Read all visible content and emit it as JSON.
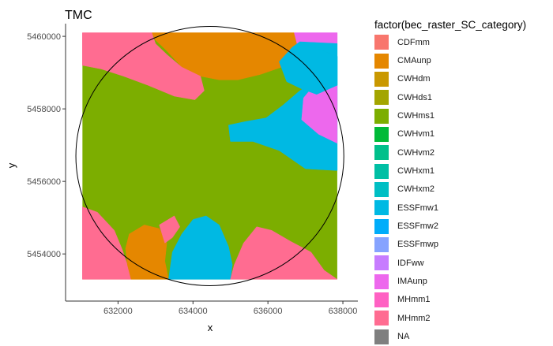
{
  "chart_data": {
    "type": "raster_map",
    "title": "TMC",
    "xlabel": "x",
    "ylabel": "y",
    "x_ticks": [
      632000,
      634000,
      636000,
      638000
    ],
    "y_ticks": [
      5454000,
      5456000,
      5458000,
      5460000
    ],
    "x_tick_labels": [
      "632000",
      "634000",
      "636000",
      "638000"
    ],
    "y_tick_labels": [
      "5454000",
      "5456000",
      "5458000",
      "5460000"
    ],
    "xlim": [
      630600,
      638400
    ],
    "ylim": [
      5452700,
      5460350
    ],
    "raster_extent": {
      "xmin": 631050,
      "xmax": 637850,
      "ymin": 5453300,
      "ymax": 5460100
    },
    "legend_title": "factor(bec_raster_SC_category)",
    "legend_position": "right",
    "categories": [
      {
        "name": "CDFmm",
        "color": "#F8766D"
      },
      {
        "name": "CMAunp",
        "color": "#E58700"
      },
      {
        "name": "CWHdm",
        "color": "#C99800"
      },
      {
        "name": "CWHds1",
        "color": "#A3A500"
      },
      {
        "name": "CWHms1",
        "color": "#7CAE00"
      },
      {
        "name": "CWHvm1",
        "color": "#00BA38"
      },
      {
        "name": "CWHvm2",
        "color": "#00C08B"
      },
      {
        "name": "CWHxm1",
        "color": "#00BFA4"
      },
      {
        "name": "CWHxm2",
        "color": "#00BFC4"
      },
      {
        "name": "ESSFmw1",
        "color": "#00B9E3"
      },
      {
        "name": "ESSFmw2",
        "color": "#00ADFA"
      },
      {
        "name": "ESSFmwp",
        "color": "#86A3FF"
      },
      {
        "name": "IDFww",
        "color": "#C77CFF"
      },
      {
        "name": "IMAunp",
        "color": "#ED68ED"
      },
      {
        "name": "MHmm1",
        "color": "#FF61C3"
      },
      {
        "name": "MHmm2",
        "color": "#FF6C91"
      },
      {
        "name": "NA",
        "color": "#7F7F7F"
      }
    ],
    "background_category": "CWHms1",
    "regions": [
      {
        "category": "CMAunp",
        "polygon": [
          [
            632900,
            5460100
          ],
          [
            636700,
            5460100
          ],
          [
            636800,
            5459700
          ],
          [
            636500,
            5459200
          ],
          [
            635800,
            5458950
          ],
          [
            635200,
            5458800
          ],
          [
            634700,
            5458800
          ],
          [
            634200,
            5458900
          ],
          [
            633700,
            5459150
          ],
          [
            633300,
            5459600
          ],
          [
            633000,
            5459900
          ]
        ]
      },
      {
        "category": "MHmm2",
        "polygon": [
          [
            631050,
            5460100
          ],
          [
            632900,
            5460100
          ],
          [
            633000,
            5459800
          ],
          [
            633300,
            5459500
          ],
          [
            633700,
            5459150
          ],
          [
            634200,
            5458900
          ],
          [
            634300,
            5458500
          ],
          [
            634050,
            5458250
          ],
          [
            633500,
            5458350
          ],
          [
            632800,
            5458650
          ],
          [
            632150,
            5458900
          ],
          [
            631550,
            5459100
          ],
          [
            631050,
            5459200
          ]
        ]
      },
      {
        "category": "IMAunp",
        "polygon": [
          [
            636700,
            5460100
          ],
          [
            637850,
            5460100
          ],
          [
            637850,
            5459800
          ],
          [
            637350,
            5459650
          ],
          [
            636800,
            5459700
          ]
        ]
      },
      {
        "category": "ESSFmw1",
        "polygon": [
          [
            636850,
            5459850
          ],
          [
            637350,
            5459650
          ],
          [
            637850,
            5459450
          ],
          [
            637850,
            5458650
          ],
          [
            637350,
            5458800
          ],
          [
            636850,
            5458500
          ],
          [
            636400,
            5458100
          ],
          [
            635950,
            5457750
          ],
          [
            635400,
            5457650
          ],
          [
            634950,
            5457550
          ],
          [
            635000,
            5457100
          ],
          [
            635600,
            5457100
          ],
          [
            636300,
            5456850
          ],
          [
            637000,
            5456350
          ],
          [
            637850,
            5456300
          ],
          [
            637850,
            5459800
          ]
        ]
      },
      {
        "category": "IMAunp",
        "polygon": [
          [
            637850,
            5458650
          ],
          [
            637350,
            5458800
          ],
          [
            636950,
            5458300
          ],
          [
            636900,
            5457700
          ],
          [
            637350,
            5457300
          ],
          [
            637850,
            5457050
          ]
        ]
      },
      {
        "category": "ESSFmw1",
        "polygon": [
          [
            636300,
            5459300
          ],
          [
            636650,
            5459700
          ],
          [
            636850,
            5459850
          ],
          [
            637850,
            5459450
          ],
          [
            637850,
            5458650
          ],
          [
            637300,
            5458400
          ],
          [
            636900,
            5458550
          ],
          [
            636500,
            5458750
          ]
        ]
      },
      {
        "category": "MHmm2",
        "polygon": [
          [
            631050,
            5455300
          ],
          [
            631450,
            5455150
          ],
          [
            631900,
            5454650
          ],
          [
            632100,
            5454150
          ],
          [
            632250,
            5453700
          ],
          [
            632350,
            5453300
          ],
          [
            631050,
            5453300
          ]
        ]
      },
      {
        "category": "CMAunp",
        "polygon": [
          [
            632350,
            5453300
          ],
          [
            632250,
            5453700
          ],
          [
            632200,
            5454150
          ],
          [
            632300,
            5454550
          ],
          [
            632700,
            5454800
          ],
          [
            633100,
            5454700
          ],
          [
            633300,
            5454300
          ],
          [
            633250,
            5453800
          ],
          [
            633350,
            5453300
          ]
        ]
      },
      {
        "category": "MHmm2",
        "polygon": [
          [
            633100,
            5454800
          ],
          [
            633500,
            5455050
          ],
          [
            633650,
            5454750
          ],
          [
            633450,
            5454450
          ],
          [
            633250,
            5454300
          ]
        ]
      },
      {
        "category": "ESSFmw1",
        "polygon": [
          [
            633350,
            5453300
          ],
          [
            633450,
            5454050
          ],
          [
            633700,
            5454550
          ],
          [
            634000,
            5454950
          ],
          [
            634350,
            5455050
          ],
          [
            634700,
            5454800
          ],
          [
            634950,
            5454200
          ],
          [
            635050,
            5453700
          ],
          [
            635000,
            5453300
          ]
        ]
      },
      {
        "category": "MHmm2",
        "polygon": [
          [
            635000,
            5453300
          ],
          [
            635100,
            5453700
          ],
          [
            635350,
            5454300
          ],
          [
            635700,
            5454750
          ],
          [
            636100,
            5454650
          ],
          [
            636600,
            5454350
          ],
          [
            637150,
            5454050
          ],
          [
            637500,
            5453550
          ],
          [
            637850,
            5453300
          ]
        ]
      }
    ],
    "circle": {
      "cx": 634450,
      "cy": 5456700,
      "r": 3575
    }
  }
}
